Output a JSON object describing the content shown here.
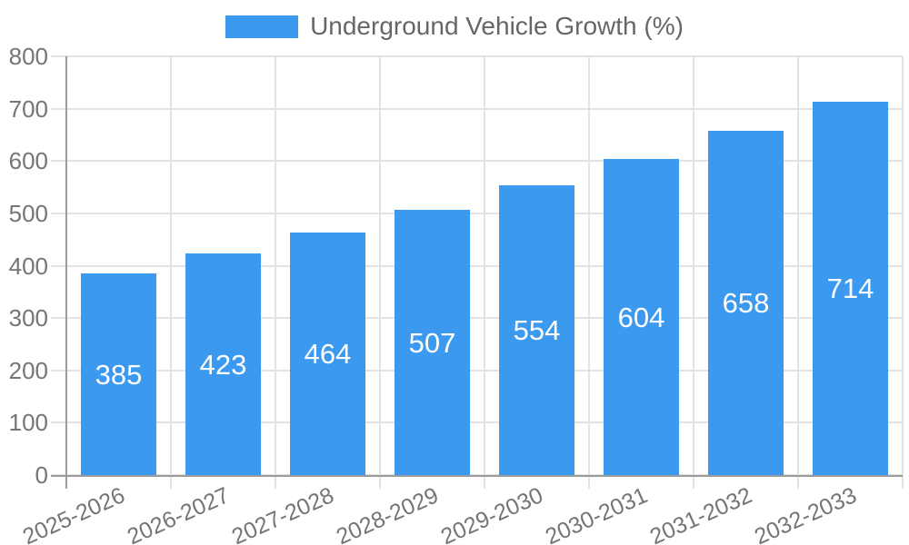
{
  "legend": {
    "label": "Underground Vehicle Growth (%)"
  },
  "chart_data": {
    "type": "bar",
    "title": "Underground Vehicle Growth (%)",
    "categories": [
      "2025-2026",
      "2026-2027",
      "2027-2028",
      "2028-2029",
      "2029-2030",
      "2030-2031",
      "2031-2032",
      "2032-2033"
    ],
    "values": [
      385,
      423,
      464,
      507,
      554,
      604,
      658,
      714
    ],
    "xlabel": "",
    "ylabel": "",
    "ylim": [
      0,
      800
    ],
    "ytick_step": 100,
    "ytick_labels": [
      "0",
      "100",
      "200",
      "300",
      "400",
      "500",
      "600",
      "700",
      "800"
    ],
    "grid": true,
    "legend_position": "top",
    "bar_value_labels_shown": true
  },
  "colors": {
    "bar": "#3B99EF",
    "grid": "#E3E3E3",
    "axis": "#9B9B9B",
    "tick_text": "#757575",
    "legend_text": "#666666",
    "bar_label_text": "#FFFFFF",
    "background": "#FFFFFF"
  }
}
